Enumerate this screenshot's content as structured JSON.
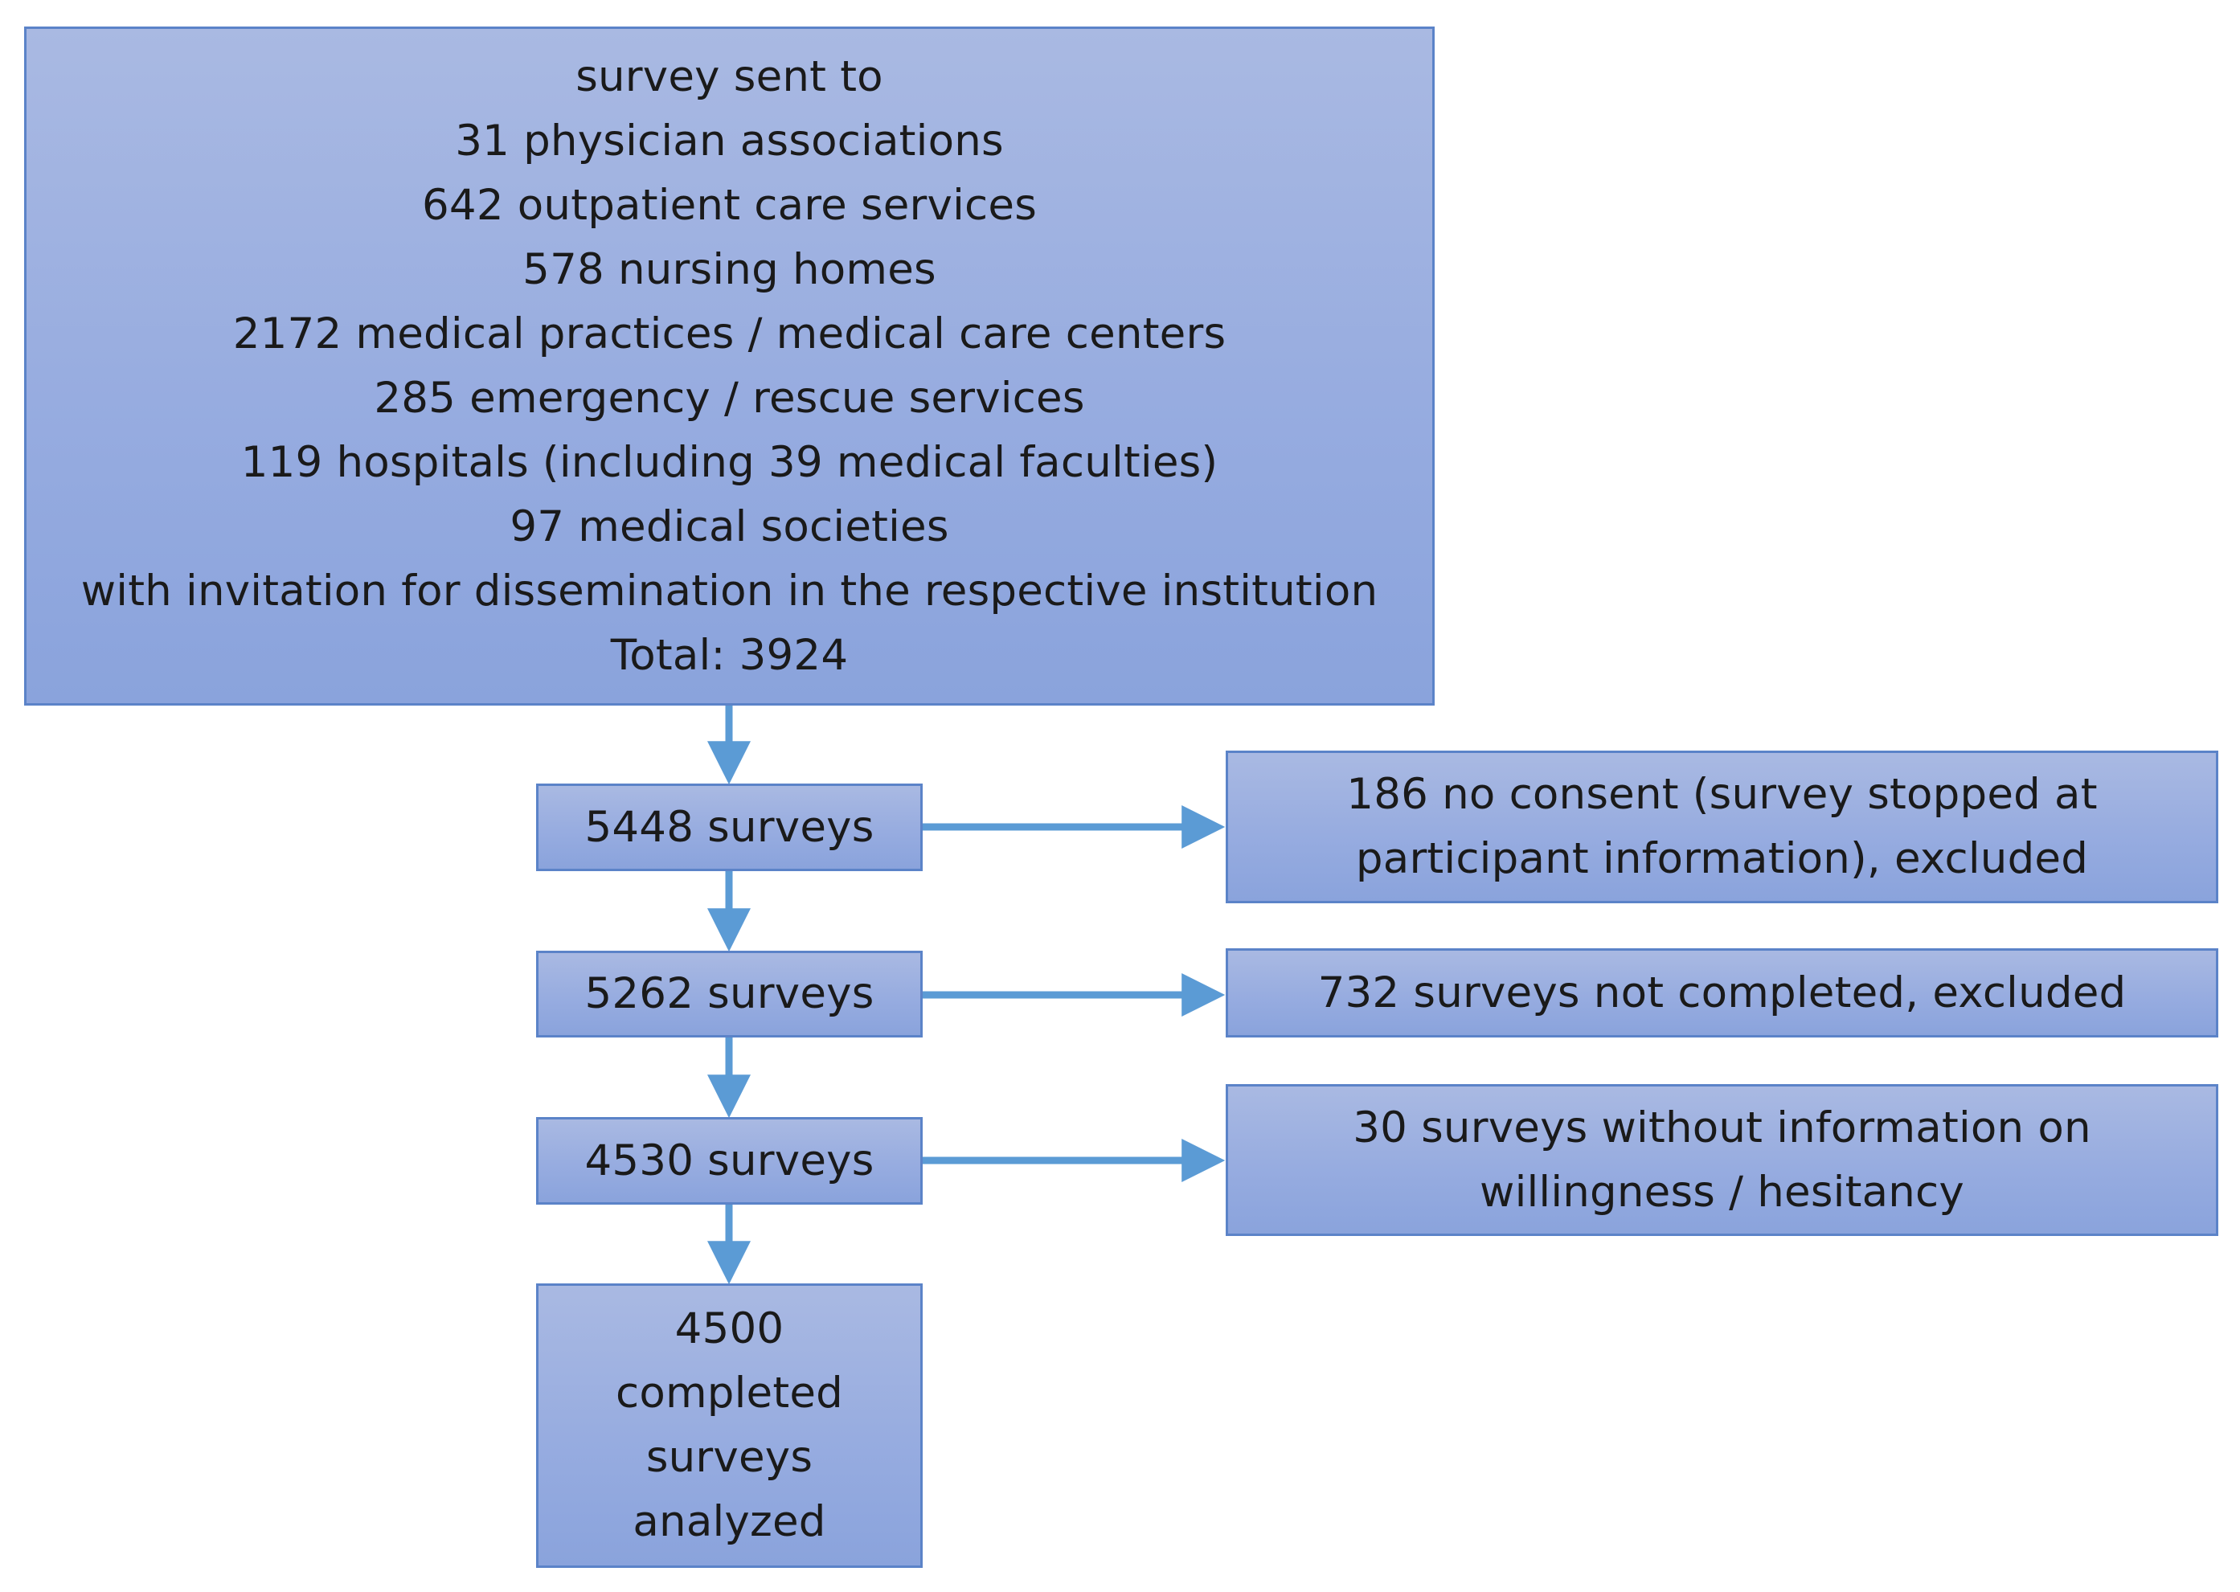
{
  "diagram": {
    "top_box": {
      "lines": [
        "survey sent to",
        "31 physician associations",
        "642 outpatient care services",
        "578 nursing homes",
        "2172 medical practices / medical care centers",
        "285 emergency / rescue services",
        "119 hospitals (including 39 medical faculties)",
        "97 medical societies",
        "with invitation for dissemination in the respective institution",
        "Total: 3924"
      ]
    },
    "flow": [
      {
        "label": "5448 surveys"
      },
      {
        "label": "5262 surveys"
      },
      {
        "label": "4530 surveys"
      },
      {
        "lines": [
          "4500",
          "completed",
          "surveys",
          "analyzed"
        ]
      }
    ],
    "exclusions": [
      {
        "lines": [
          "186 no consent (survey stopped at",
          "participant information), excluded"
        ]
      },
      {
        "lines": [
          "732 surveys not completed, excluded"
        ]
      },
      {
        "lines": [
          "30 surveys without information on",
          "willingness / hesitancy"
        ]
      }
    ],
    "colors": {
      "box_fill_top": "#a9b9e2",
      "box_fill_bottom": "#8aa3dc",
      "box_border": "#5b83c8",
      "arrow": "#5b9bd5"
    }
  }
}
